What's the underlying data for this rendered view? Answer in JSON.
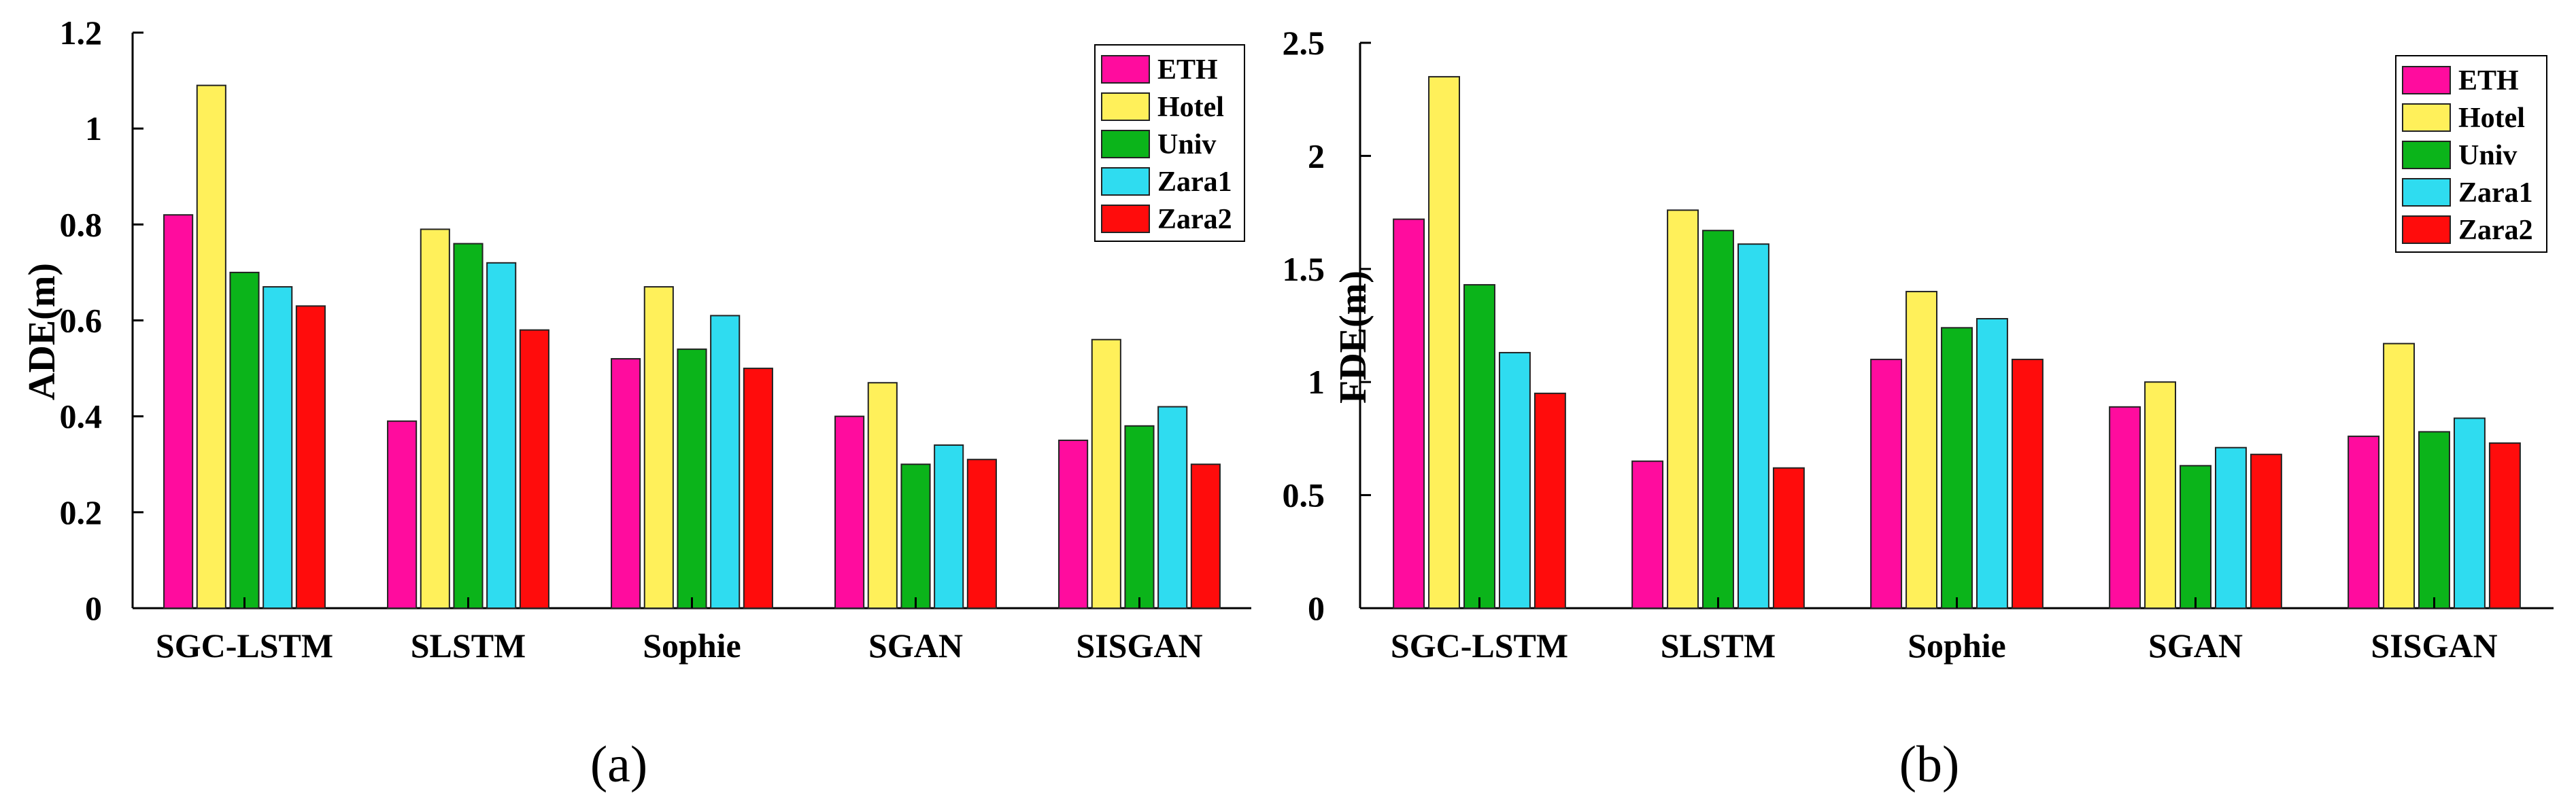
{
  "figure": {
    "captions": [
      "(a)",
      "(b)"
    ]
  },
  "series_colors": {
    "ETH": "#ff0c9e",
    "Hotel": "#fff05a",
    "Univ": "#0bb41a",
    "Zara1": "#2fdcf0",
    "Zara2": "#ff0c0c"
  },
  "chart_data": [
    {
      "type": "bar",
      "title": "",
      "caption": "(a)",
      "xlabel": "",
      "ylabel": "ADE(m)",
      "ylim": [
        0,
        1.2
      ],
      "yticks": [
        0,
        0.2,
        0.4,
        0.6,
        0.8,
        1,
        1.2
      ],
      "ytick_labels": [
        "0",
        "0.2",
        "0.4",
        "0.6",
        "0.8",
        "1",
        "1.2"
      ],
      "legend_position": "top-right",
      "categories": [
        "SGC-LSTM",
        "SLSTM",
        "Sophie",
        "SGAN",
        "SISGAN"
      ],
      "series": [
        {
          "name": "ETH",
          "values": [
            0.82,
            0.39,
            0.52,
            0.4,
            0.35
          ]
        },
        {
          "name": "Hotel",
          "values": [
            1.09,
            0.79,
            0.67,
            0.47,
            0.56
          ]
        },
        {
          "name": "Univ",
          "values": [
            0.7,
            0.76,
            0.54,
            0.3,
            0.38
          ]
        },
        {
          "name": "Zara1",
          "values": [
            0.67,
            0.72,
            0.61,
            0.34,
            0.42
          ]
        },
        {
          "name": "Zara2",
          "values": [
            0.63,
            0.58,
            0.5,
            0.31,
            0.3
          ]
        }
      ]
    },
    {
      "type": "bar",
      "title": "",
      "caption": "(b)",
      "xlabel": "",
      "ylabel": "FDE(m)",
      "ylim": [
        0,
        2.5
      ],
      "yticks": [
        0,
        0.5,
        1,
        1.5,
        2,
        2.5
      ],
      "ytick_labels": [
        "0",
        "0.5",
        "1",
        "1.5",
        "2",
        "2.5"
      ],
      "legend_position": "top-right",
      "categories": [
        "SGC-LSTM",
        "SLSTM",
        "Sophie",
        "SGAN",
        "SISGAN"
      ],
      "series": [
        {
          "name": "ETH",
          "values": [
            1.72,
            0.65,
            1.1,
            0.89,
            0.76
          ]
        },
        {
          "name": "Hotel",
          "values": [
            2.35,
            1.76,
            1.4,
            1.0,
            1.17
          ]
        },
        {
          "name": "Univ",
          "values": [
            1.43,
            1.67,
            1.24,
            0.63,
            0.78
          ]
        },
        {
          "name": "Zara1",
          "values": [
            1.13,
            1.61,
            1.28,
            0.71,
            0.84
          ]
        },
        {
          "name": "Zara2",
          "values": [
            0.95,
            0.62,
            1.1,
            0.68,
            0.73
          ]
        }
      ]
    }
  ]
}
